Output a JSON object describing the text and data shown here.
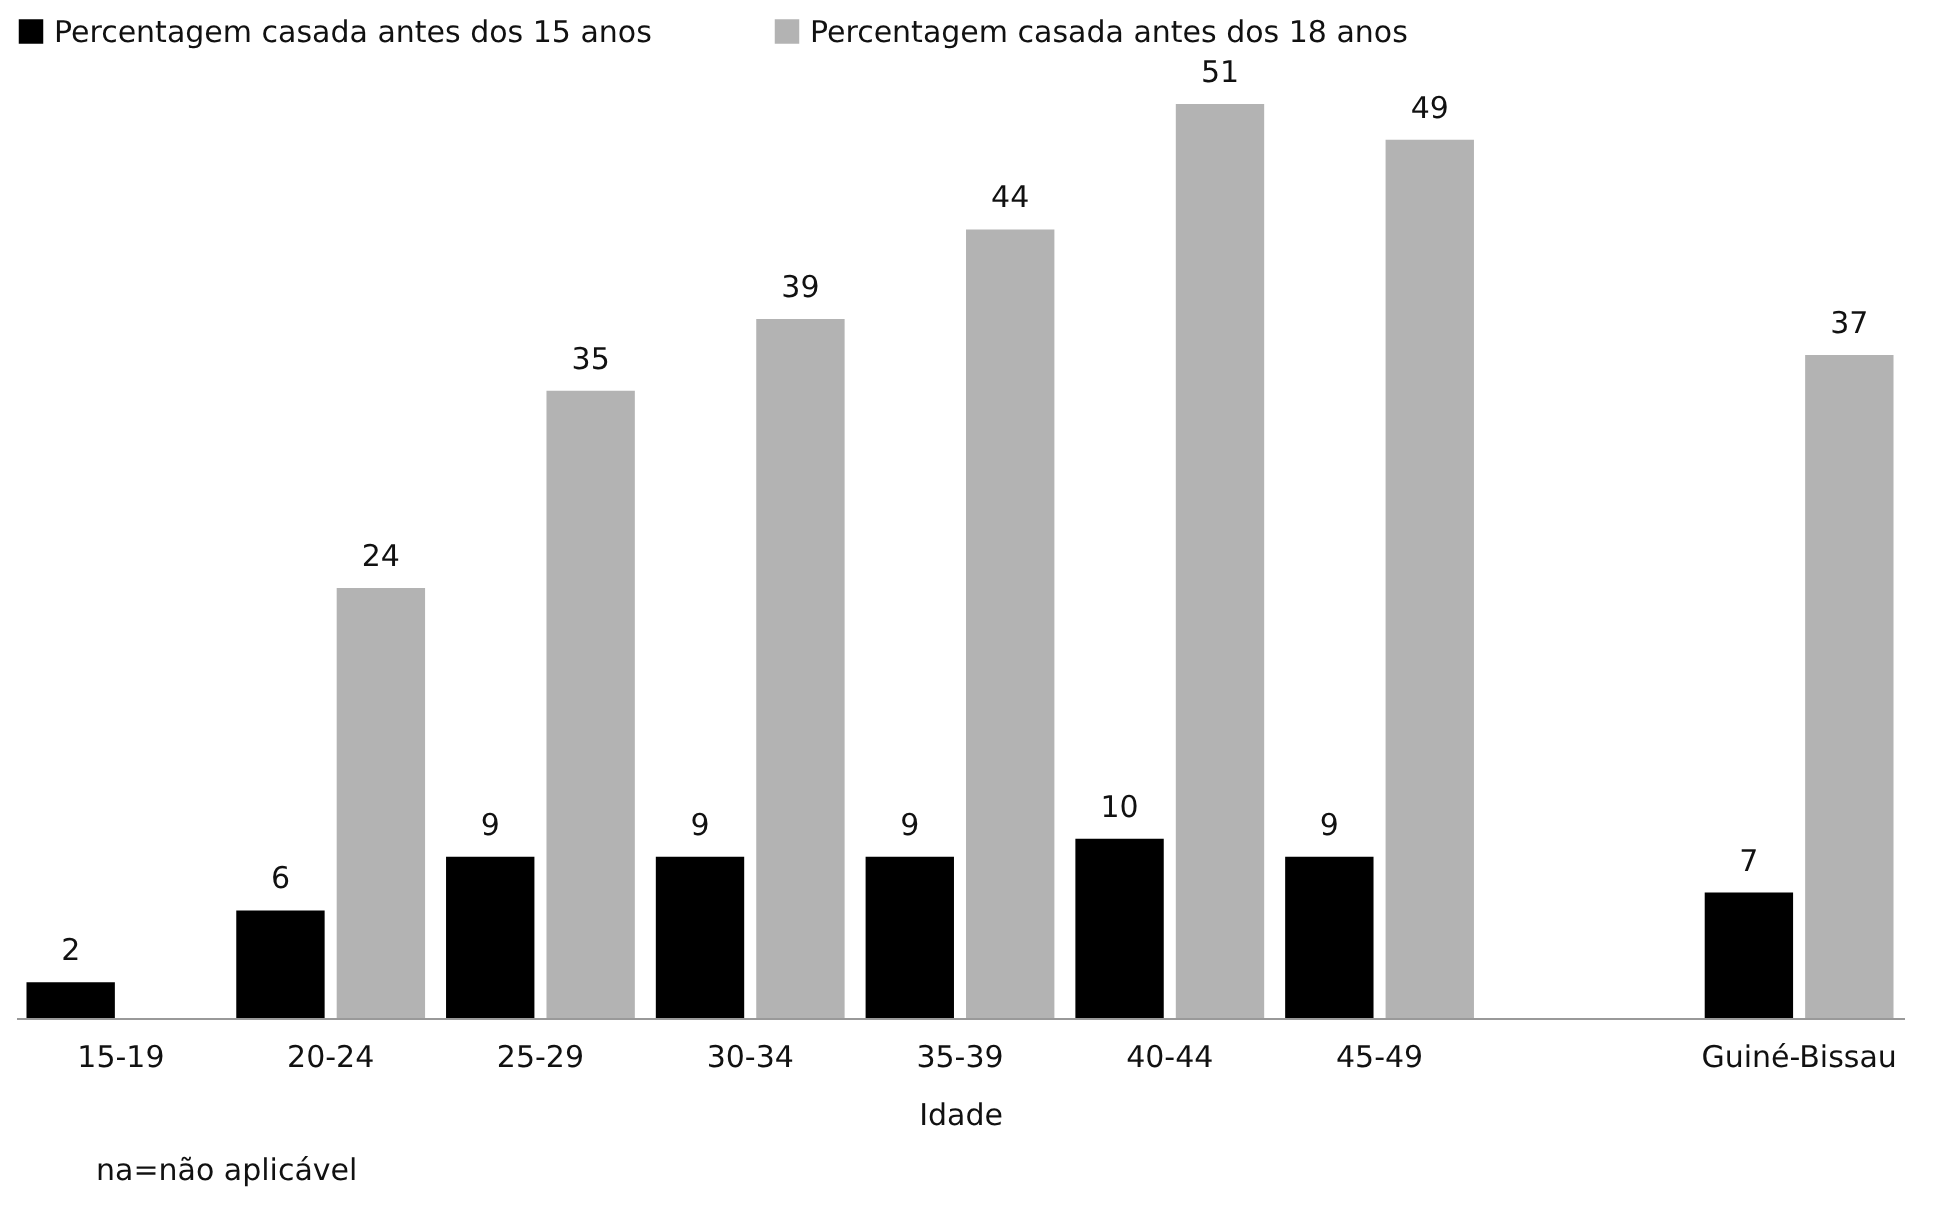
{
  "chart_data": {
    "type": "bar",
    "xlabel": "Idade",
    "categories": [
      "15-19",
      "20-24",
      "25-29",
      "30-34",
      "35-39",
      "40-44",
      "45-49",
      null,
      "Guiné-Bissau"
    ],
    "series": [
      {
        "name": "Percentagem casada antes dos 15 anos",
        "color": "#000000",
        "values": [
          2,
          6,
          9,
          9,
          9,
          10,
          9,
          null,
          7
        ]
      },
      {
        "name": "Percentagem casada antes dos 18  anos",
        "color": "#b3b3b3",
        "values": [
          null,
          24,
          35,
          39,
          44,
          51,
          49,
          null,
          37
        ]
      }
    ],
    "data_labels": true,
    "legend": "top",
    "grid": false,
    "annotations": [
      "na=não aplicável"
    ]
  }
}
